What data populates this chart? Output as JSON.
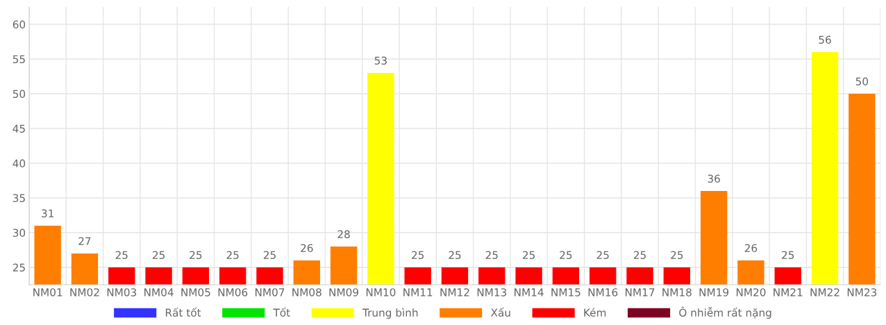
{
  "chart_data": {
    "type": "bar",
    "stacked": true,
    "categories": [
      "NM01",
      "NM02",
      "NM03",
      "NM04",
      "NM05",
      "NM06",
      "NM07",
      "NM08",
      "NM09",
      "NM10",
      "NM11",
      "NM12",
      "NM13",
      "NM14",
      "NM15",
      "NM16",
      "NM17",
      "NM18",
      "NM19",
      "NM20",
      "NM21",
      "NM22",
      "NM23"
    ],
    "series": [
      {
        "name": "Rất tốt",
        "color": "#3333ff",
        "values": [
          null,
          null,
          null,
          null,
          null,
          null,
          null,
          null,
          null,
          null,
          null,
          null,
          null,
          null,
          null,
          null,
          null,
          null,
          null,
          null,
          null,
          null,
          null
        ]
      },
      {
        "name": "Tốt",
        "color": "#00e400",
        "values": [
          null,
          null,
          null,
          null,
          null,
          null,
          null,
          null,
          null,
          null,
          null,
          null,
          null,
          null,
          null,
          null,
          null,
          null,
          null,
          null,
          null,
          null,
          null
        ]
      },
      {
        "name": "Trung bình",
        "color": "#ffff00",
        "values": [
          null,
          null,
          null,
          null,
          null,
          null,
          null,
          null,
          null,
          53,
          null,
          null,
          null,
          null,
          null,
          null,
          null,
          null,
          null,
          null,
          null,
          56,
          null
        ]
      },
      {
        "name": "Xấu",
        "color": "#ff7e00",
        "values": [
          31,
          27,
          null,
          null,
          null,
          null,
          null,
          26,
          28,
          null,
          null,
          null,
          null,
          null,
          null,
          null,
          null,
          null,
          36,
          26,
          null,
          null,
          50
        ]
      },
      {
        "name": "Kém",
        "color": "#ff0000",
        "values": [
          null,
          null,
          25,
          25,
          25,
          25,
          25,
          null,
          null,
          null,
          25,
          25,
          25,
          25,
          25,
          25,
          25,
          25,
          null,
          null,
          25,
          null,
          null
        ]
      },
      {
        "name": "Ô nhiễm rất nặng",
        "color": "#7e0023",
        "values": [
          null,
          null,
          null,
          null,
          null,
          null,
          null,
          null,
          null,
          null,
          null,
          null,
          null,
          null,
          null,
          null,
          null,
          null,
          null,
          null,
          null,
          null,
          null
        ]
      }
    ],
    "ylim": [
      22.5,
      62.5
    ],
    "yticks": [
      25,
      30,
      35,
      40,
      45,
      50,
      55,
      60
    ],
    "grid": true,
    "data_labels": true,
    "legend": "bottom"
  }
}
